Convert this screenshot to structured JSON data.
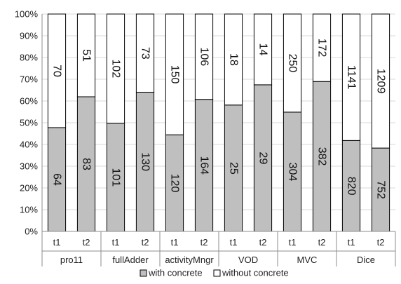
{
  "chart_data": {
    "type": "bar",
    "stacked": "percent",
    "groups": [
      "pro11",
      "fullAdder",
      "activityMngr",
      "VOD",
      "MVC",
      "Dice"
    ],
    "subcategories": [
      "t1",
      "t2"
    ],
    "series": [
      {
        "name": "with concrete",
        "color": "#bfbfbf",
        "values": [
          64,
          83,
          101,
          130,
          120,
          164,
          25,
          29,
          304,
          382,
          820,
          752
        ]
      },
      {
        "name": "without concrete",
        "color": "#ffffff",
        "values": [
          70,
          51,
          102,
          73,
          150,
          106,
          18,
          14,
          250,
          172,
          1141,
          1209
        ]
      }
    ],
    "y_ticks": [
      "0%",
      "10%",
      "20%",
      "30%",
      "40%",
      "50%",
      "60%",
      "70%",
      "80%",
      "90%",
      "100%"
    ],
    "ylim": [
      0,
      100
    ],
    "grid": true,
    "legend_position": "bottom"
  }
}
